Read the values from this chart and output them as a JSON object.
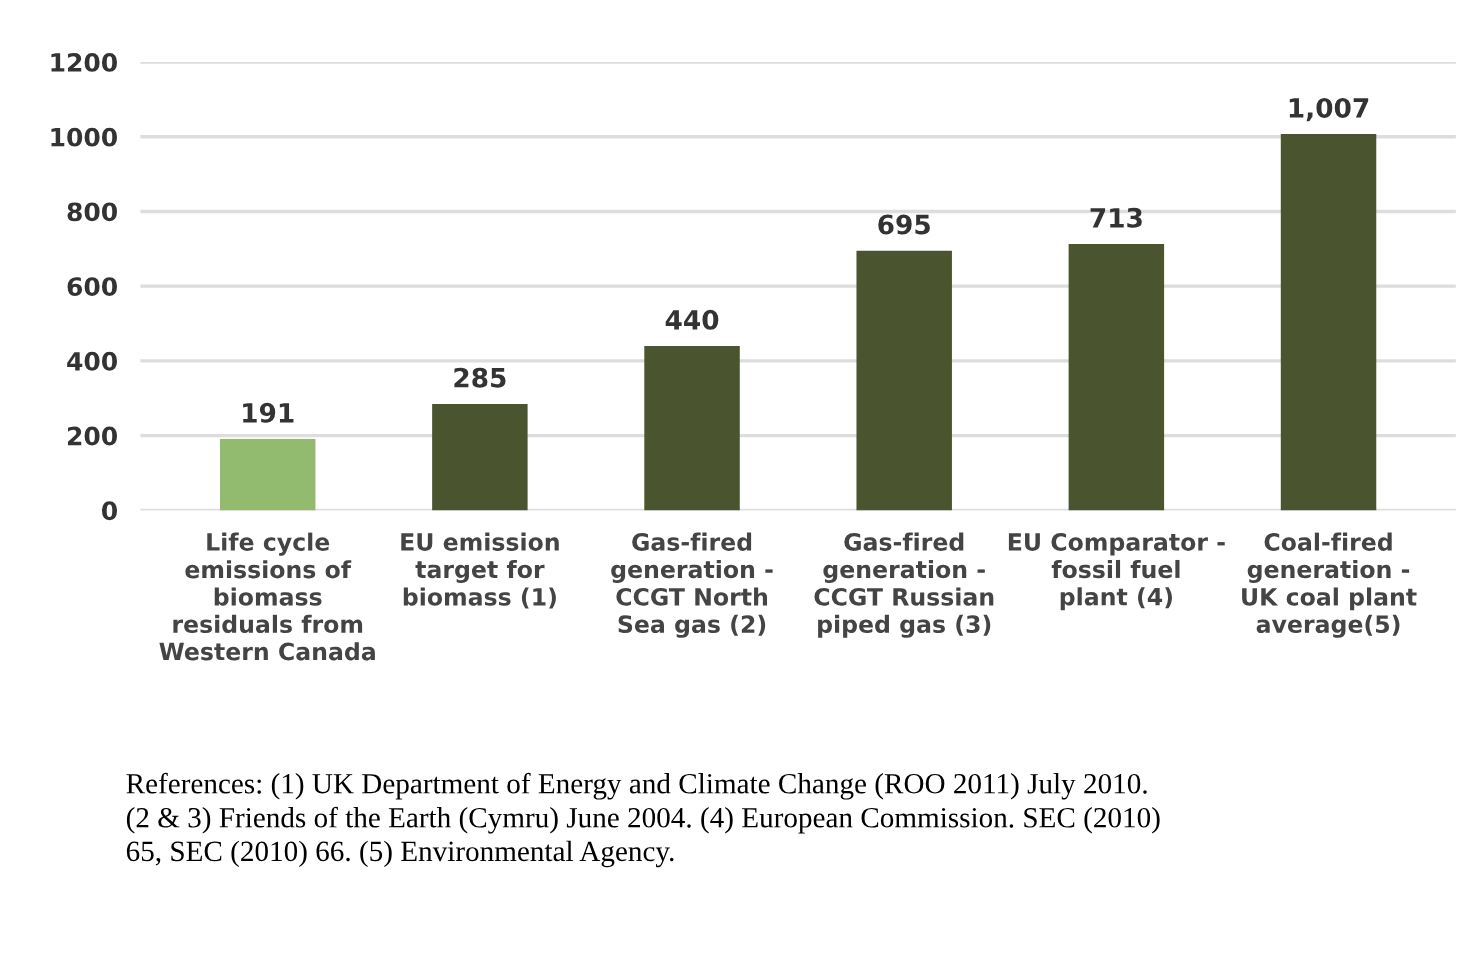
{
  "chart_data": {
    "type": "bar",
    "categories": [
      "Life cycle\nemissions of\nbiomass\nresiduals from\nWestern Canada",
      "EU emission\ntarget for\nbiomass (1)",
      "Gas-fired\ngeneration -\nCCGT North\nSea gas (2)",
      "Gas-fired\ngeneration -\nCCGT Russian\npiped gas (3)",
      "EU Comparator -\nfossil fuel\nplant (4)",
      "Coal-fired\ngeneration -\nUK coal plant\naverage(5)"
    ],
    "values": [
      191,
      285,
      440,
      695,
      713,
      1007
    ],
    "colors": [
      "#93bb6f",
      "#4a5530",
      "#4a5530",
      "#4a5530",
      "#4a5530",
      "#4a5530"
    ],
    "value_labels": [
      "191",
      "285",
      "440",
      "695",
      "713",
      "1,007"
    ],
    "ylim": [
      0,
      1200
    ],
    "yticks": [
      0,
      200,
      400,
      600,
      800,
      1000,
      1200
    ],
    "grid": "y",
    "annotations": [
      "References: (1) UK Department of Energy and Climate Change (ROO 2011) July 2010.\n(2 & 3) Friends of the Earth (Cymru) June 2004. (4) European Commission. SEC (2010)\n65, SEC (2010) 66. (5) Environmental Agency."
    ]
  }
}
